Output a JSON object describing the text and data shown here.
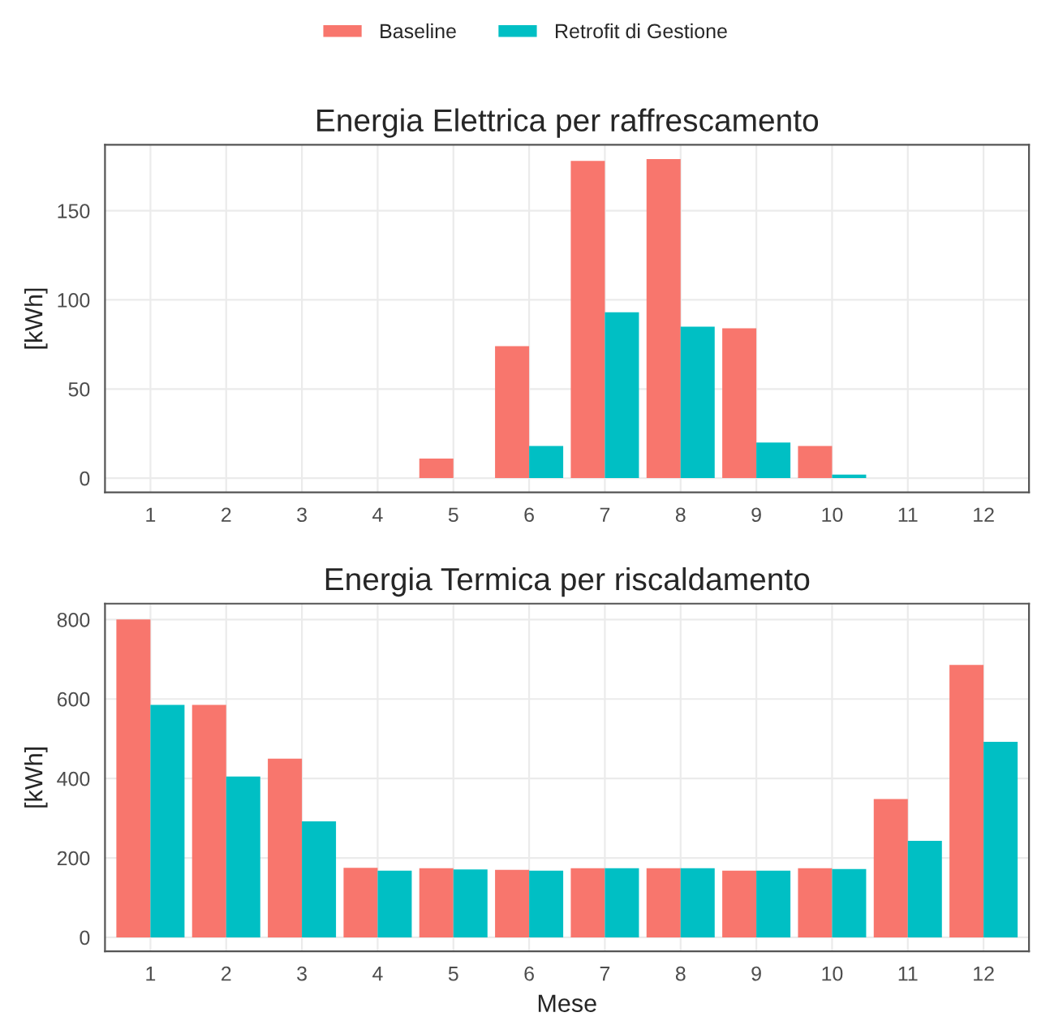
{
  "chart_data": [
    {
      "type": "bar",
      "title": "Energia Elettrica per raffrescamento",
      "ylabel": "[kWh]",
      "categories": [
        "1",
        "2",
        "3",
        "4",
        "5",
        "6",
        "7",
        "8",
        "9",
        "10",
        "11",
        "12"
      ],
      "series": [
        {
          "name": "Baseline",
          "color": "#f8766d",
          "values": [
            0,
            0,
            0,
            0,
            11,
            74,
            178,
            179,
            84,
            18,
            0,
            0
          ]
        },
        {
          "name": "Retrofit di Gestione",
          "color": "#00bfc4",
          "values": [
            0,
            0,
            0,
            0,
            0,
            18,
            93,
            85,
            20,
            2,
            0,
            0
          ]
        }
      ],
      "ylim": [
        -8,
        187
      ],
      "yticks": [
        0,
        50,
        100,
        150
      ],
      "grid": true,
      "legend": "top"
    },
    {
      "type": "bar",
      "title": "Energia Termica per riscaldamento",
      "xlabel": "Mese",
      "ylabel": "[kWh]",
      "categories": [
        "1",
        "2",
        "3",
        "4",
        "5",
        "6",
        "7",
        "8",
        "9",
        "10",
        "11",
        "12"
      ],
      "series": [
        {
          "color": "#f8766d",
          "values": [
            800,
            585,
            450,
            175,
            174,
            170,
            174,
            174,
            168,
            174,
            348,
            686
          ]
        },
        {
          "color": "#00bfc4",
          "values": [
            585,
            405,
            292,
            168,
            171,
            168,
            174,
            174,
            168,
            172,
            243,
            492
          ]
        }
      ],
      "ylim": [
        -35,
        840
      ],
      "yticks": [
        0,
        200,
        400,
        600,
        800
      ],
      "grid": true
    }
  ]
}
